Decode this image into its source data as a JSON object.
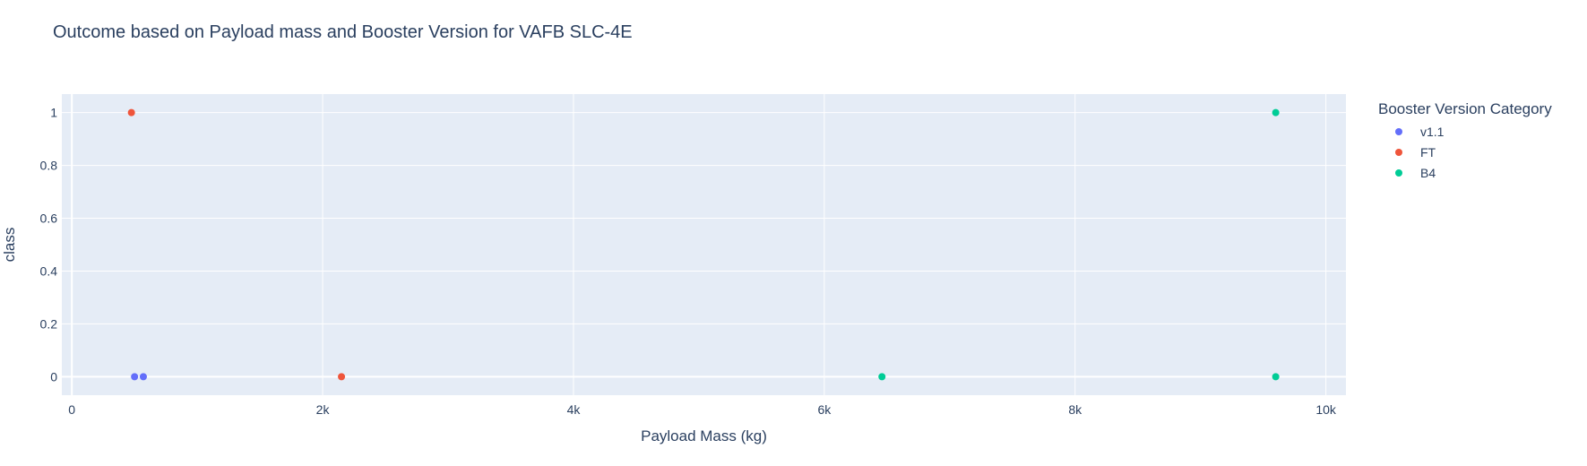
{
  "chart_data": {
    "type": "scatter",
    "title": "Outcome based on Payload mass and Booster Version for VAFB SLC-4E",
    "xlabel": "Payload Mass (kg)",
    "ylabel": "class",
    "xlim": [
      -80,
      10160
    ],
    "ylim": [
      -0.07,
      1.07
    ],
    "x_ticks": [
      0,
      2000,
      4000,
      6000,
      8000,
      10000
    ],
    "x_tick_labels": [
      "0",
      "2k",
      "4k",
      "6k",
      "8k",
      "10k"
    ],
    "y_ticks": [
      0,
      0.2,
      0.4,
      0.6,
      0.8,
      1
    ],
    "y_tick_labels": [
      "0",
      "0.2",
      "0.4",
      "0.6",
      "0.8",
      "1"
    ],
    "grid": true,
    "background": "#E5ECF6",
    "legend_title": "Booster Version Category",
    "legend_position": "right",
    "series": [
      {
        "name": "v1.1",
        "color": "#636EFA",
        "points": [
          [
            500,
            0
          ],
          [
            570,
            0
          ]
        ]
      },
      {
        "name": "FT",
        "color": "#EF553B",
        "points": [
          [
            475,
            1
          ],
          [
            2150,
            0
          ]
        ]
      },
      {
        "name": "B4",
        "color": "#00CC96",
        "points": [
          [
            6460,
            0
          ],
          [
            9600,
            1
          ],
          [
            9600,
            0
          ]
        ]
      }
    ]
  }
}
